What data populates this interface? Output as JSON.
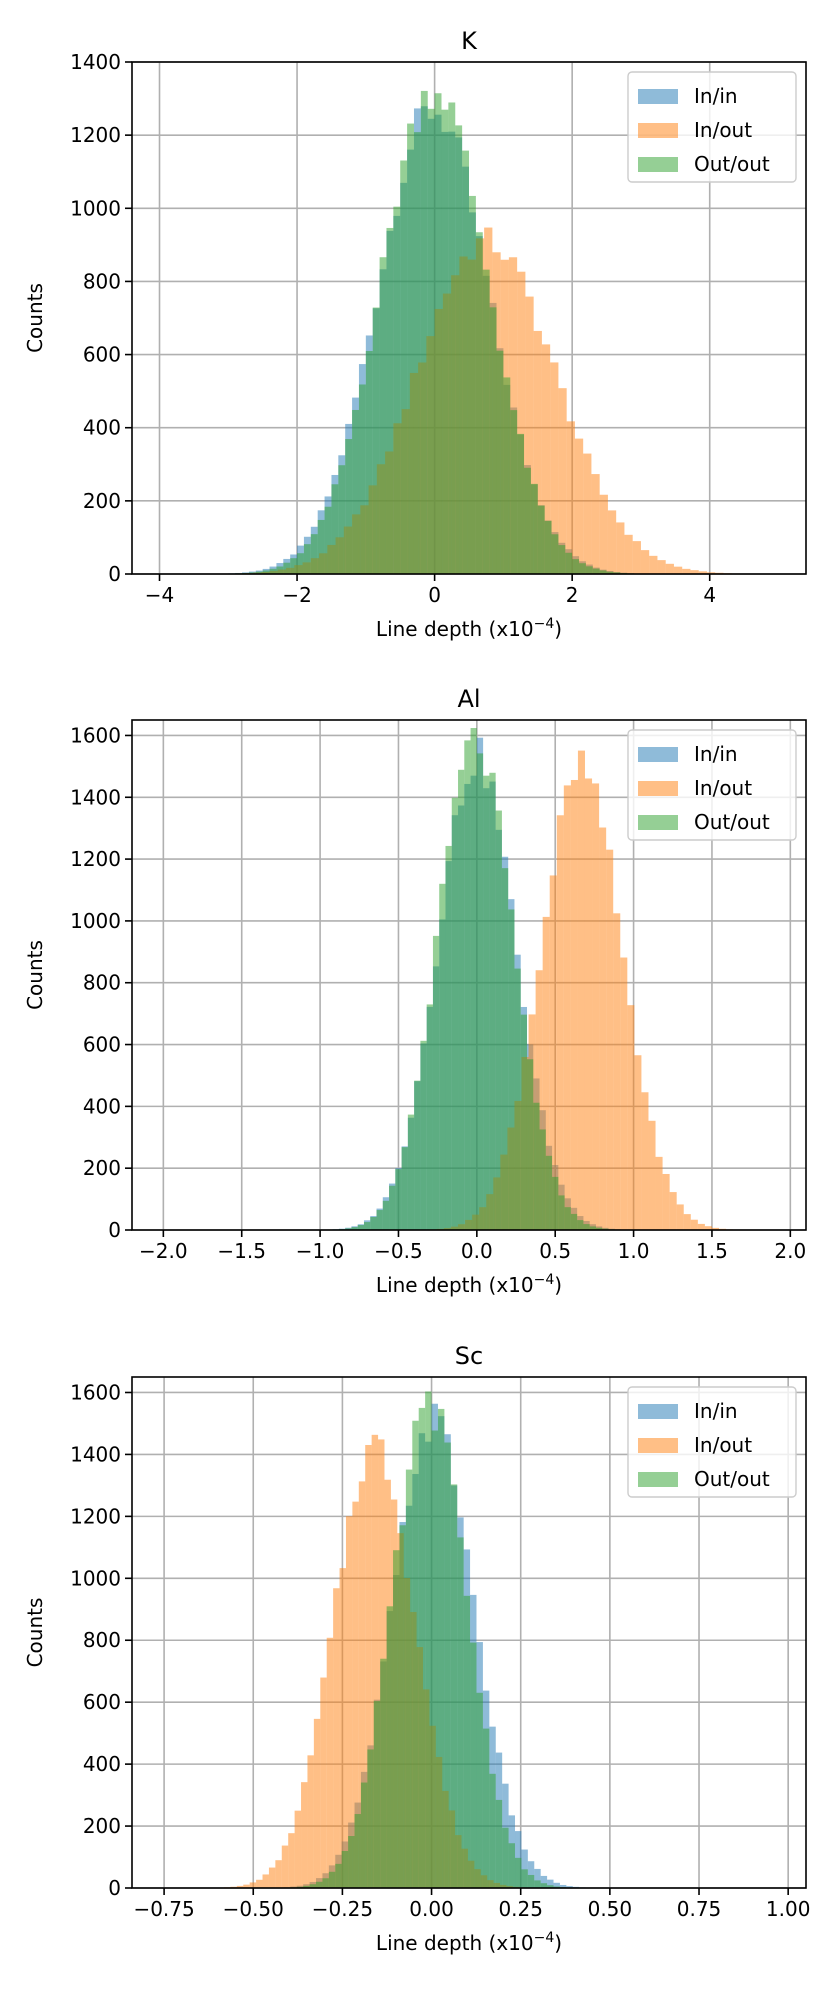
{
  "chart_data": [
    {
      "type": "histogram",
      "title": "K",
      "xlabel": "Line depth (x10",
      "xlabel_sup": "−4",
      "xlabel_tail": ")",
      "ylabel": "Counts",
      "xlim": [
        -4.4,
        5.4
      ],
      "ylim": [
        0,
        1400
      ],
      "xticks": [
        -4,
        -2,
        0,
        2,
        4
      ],
      "xtick_labels": [
        "−4",
        "−2",
        "0",
        "2",
        "4"
      ],
      "yticks": [
        0,
        200,
        400,
        600,
        800,
        1000,
        1200,
        1400
      ],
      "grid": true,
      "legend_position": "top-right",
      "legend": [
        "In/in",
        "In/out",
        "Out/out"
      ],
      "series": [
        {
          "name": "In/in",
          "color": "#1f77b4",
          "mean": -0.02,
          "std": 0.81,
          "peak": 1270,
          "x_range": [
            -3.2,
            3.2
          ],
          "bin_width": 0.1
        },
        {
          "name": "In/out",
          "color": "#ff7f0e",
          "mean": 0.75,
          "std": 1.01,
          "peak": 910,
          "x_range": [
            -3.6,
            4.8
          ],
          "bin_width": 0.12
        },
        {
          "name": "Out/out",
          "color": "#2ca02c",
          "mean": 0.0,
          "std": 0.78,
          "peak": 1330,
          "x_range": [
            -3.2,
            3.2
          ],
          "bin_width": 0.1
        }
      ]
    },
    {
      "type": "histogram",
      "title": "Al",
      "xlabel": "Line depth (x10",
      "xlabel_sup": "−4",
      "xlabel_tail": ")",
      "ylabel": "Counts",
      "xlim": [
        -2.2,
        2.1
      ],
      "ylim": [
        0,
        1650
      ],
      "xticks": [
        -2.0,
        -1.5,
        -1.0,
        -0.5,
        0.0,
        0.5,
        1.0,
        1.5,
        2.0
      ],
      "xtick_labels": [
        "−2.0",
        "−1.5",
        "−1.0",
        "−0.5",
        "0.0",
        "0.5",
        "1.0",
        "1.5",
        "2.0"
      ],
      "yticks": [
        0,
        200,
        400,
        600,
        800,
        1000,
        1200,
        1400,
        1600
      ],
      "grid": true,
      "legend_position": "top-right",
      "legend": [
        "In/in",
        "In/out",
        "Out/out"
      ],
      "series": [
        {
          "name": "In/in",
          "color": "#1f77b4",
          "mean": 0.0,
          "std": 0.25,
          "peak": 1530,
          "x_range": [
            -1.0,
            1.0
          ],
          "bin_width": 0.04
        },
        {
          "name": "In/out",
          "color": "#ff7f0e",
          "mean": 0.67,
          "std": 0.26,
          "peak": 1490,
          "x_range": [
            -0.3,
            1.65
          ],
          "bin_width": 0.045
        },
        {
          "name": "Out/out",
          "color": "#2ca02c",
          "mean": -0.01,
          "std": 0.24,
          "peak": 1580,
          "x_range": [
            -1.0,
            1.0
          ],
          "bin_width": 0.04
        }
      ]
    },
    {
      "type": "histogram",
      "title": "Sc",
      "xlabel": "Line depth (x10",
      "xlabel_sup": "−4",
      "xlabel_tail": ")",
      "ylabel": "Counts",
      "xlim": [
        -0.84,
        1.05
      ],
      "ylim": [
        0,
        1650
      ],
      "xticks": [
        -0.75,
        -0.5,
        -0.25,
        0.0,
        0.25,
        0.5,
        0.75,
        1.0
      ],
      "xtick_labels": [
        "−0.75",
        "−0.50",
        "−0.25",
        "0.00",
        "0.25",
        "0.50",
        "0.75",
        "1.00"
      ],
      "yticks": [
        0,
        200,
        400,
        600,
        800,
        1000,
        1200,
        1400,
        1600
      ],
      "grid": true,
      "legend_position": "top-right",
      "legend": [
        "In/in",
        "In/out",
        "Out/out"
      ],
      "series": [
        {
          "name": "In/in",
          "color": "#1f77b4",
          "mean": 0.005,
          "std": 0.115,
          "peak": 1510,
          "x_range": [
            -0.45,
            0.45
          ],
          "bin_width": 0.018
        },
        {
          "name": "In/out",
          "color": "#ff7f0e",
          "mean": -0.16,
          "std": 0.115,
          "peak": 1430,
          "x_range": [
            -0.6,
            0.3
          ],
          "bin_width": 0.018
        },
        {
          "name": "Out/out",
          "color": "#2ca02c",
          "mean": -0.005,
          "std": 0.105,
          "peak": 1560,
          "x_range": [
            -0.45,
            0.45
          ],
          "bin_width": 0.018
        }
      ]
    }
  ]
}
